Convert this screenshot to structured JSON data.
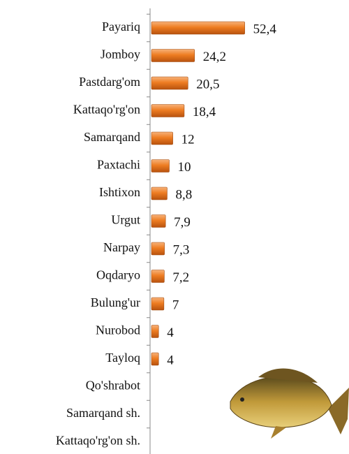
{
  "chart_data": {
    "type": "bar",
    "orientation": "horizontal",
    "categories": [
      "Payariq",
      "Jomboy",
      "Pastdarg'om",
      "Kattaqo'rg'on",
      "Samarqand",
      "Paxtachi",
      "Ishtixon",
      "Urgut",
      "Narpay",
      "Oqdaryo",
      "Bulung'ur",
      "Nurobod",
      "Tayloq",
      "Qo'shrabot",
      "Samarqand sh.",
      "Kattaqo'rg'on sh."
    ],
    "values": [
      52.4,
      24.2,
      20.5,
      18.4,
      12,
      10,
      8.8,
      7.9,
      7.3,
      7.2,
      7,
      4,
      4,
      null,
      null,
      null
    ],
    "value_labels": [
      "52,4",
      "24,2",
      "20,5",
      "18,4",
      "12",
      "10",
      "8,8",
      "7,9",
      "7,3",
      "7,2",
      "7",
      "4",
      "4",
      null,
      null,
      null
    ],
    "color": "#e8721c"
  }
}
